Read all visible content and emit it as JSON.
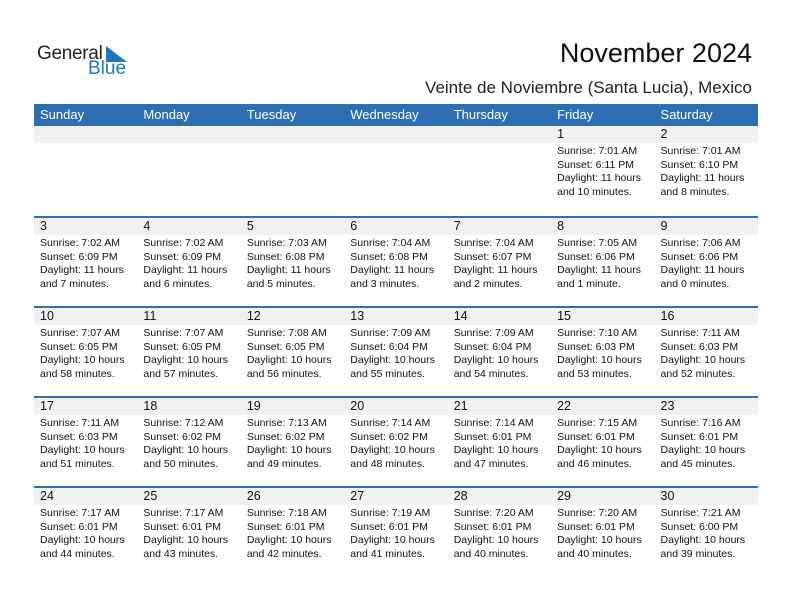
{
  "logo": {
    "word1": "General",
    "word2": "Blue",
    "color": "#1a78c2"
  },
  "header": {
    "title": "November 2024",
    "location": "Veinte de Noviembre (Santa Lucia), Mexico"
  },
  "colors": {
    "header_bg": "#2e6fb3",
    "date_band": "#f1f1f1"
  },
  "weekdays": [
    "Sunday",
    "Monday",
    "Tuesday",
    "Wednesday",
    "Thursday",
    "Friday",
    "Saturday"
  ],
  "weeks": [
    [
      null,
      null,
      null,
      null,
      null,
      {
        "day": "1",
        "sunrise": "Sunrise: 7:01 AM",
        "sunset": "Sunset: 6:11 PM",
        "daylight": "Daylight: 11 hours",
        "minutes": "and 10 minutes."
      },
      {
        "day": "2",
        "sunrise": "Sunrise: 7:01 AM",
        "sunset": "Sunset: 6:10 PM",
        "daylight": "Daylight: 11 hours",
        "minutes": "and 8 minutes."
      }
    ],
    [
      {
        "day": "3",
        "sunrise": "Sunrise: 7:02 AM",
        "sunset": "Sunset: 6:09 PM",
        "daylight": "Daylight: 11 hours",
        "minutes": "and 7 minutes."
      },
      {
        "day": "4",
        "sunrise": "Sunrise: 7:02 AM",
        "sunset": "Sunset: 6:09 PM",
        "daylight": "Daylight: 11 hours",
        "minutes": "and 6 minutes."
      },
      {
        "day": "5",
        "sunrise": "Sunrise: 7:03 AM",
        "sunset": "Sunset: 6:08 PM",
        "daylight": "Daylight: 11 hours",
        "minutes": "and 5 minutes."
      },
      {
        "day": "6",
        "sunrise": "Sunrise: 7:04 AM",
        "sunset": "Sunset: 6:08 PM",
        "daylight": "Daylight: 11 hours",
        "minutes": "and 3 minutes."
      },
      {
        "day": "7",
        "sunrise": "Sunrise: 7:04 AM",
        "sunset": "Sunset: 6:07 PM",
        "daylight": "Daylight: 11 hours",
        "minutes": "and 2 minutes."
      },
      {
        "day": "8",
        "sunrise": "Sunrise: 7:05 AM",
        "sunset": "Sunset: 6:06 PM",
        "daylight": "Daylight: 11 hours",
        "minutes": "and 1 minute."
      },
      {
        "day": "9",
        "sunrise": "Sunrise: 7:06 AM",
        "sunset": "Sunset: 6:06 PM",
        "daylight": "Daylight: 11 hours",
        "minutes": "and 0 minutes."
      }
    ],
    [
      {
        "day": "10",
        "sunrise": "Sunrise: 7:07 AM",
        "sunset": "Sunset: 6:05 PM",
        "daylight": "Daylight: 10 hours",
        "minutes": "and 58 minutes."
      },
      {
        "day": "11",
        "sunrise": "Sunrise: 7:07 AM",
        "sunset": "Sunset: 6:05 PM",
        "daylight": "Daylight: 10 hours",
        "minutes": "and 57 minutes."
      },
      {
        "day": "12",
        "sunrise": "Sunrise: 7:08 AM",
        "sunset": "Sunset: 6:05 PM",
        "daylight": "Daylight: 10 hours",
        "minutes": "and 56 minutes."
      },
      {
        "day": "13",
        "sunrise": "Sunrise: 7:09 AM",
        "sunset": "Sunset: 6:04 PM",
        "daylight": "Daylight: 10 hours",
        "minutes": "and 55 minutes."
      },
      {
        "day": "14",
        "sunrise": "Sunrise: 7:09 AM",
        "sunset": "Sunset: 6:04 PM",
        "daylight": "Daylight: 10 hours",
        "minutes": "and 54 minutes."
      },
      {
        "day": "15",
        "sunrise": "Sunrise: 7:10 AM",
        "sunset": "Sunset: 6:03 PM",
        "daylight": "Daylight: 10 hours",
        "minutes": "and 53 minutes."
      },
      {
        "day": "16",
        "sunrise": "Sunrise: 7:11 AM",
        "sunset": "Sunset: 6:03 PM",
        "daylight": "Daylight: 10 hours",
        "minutes": "and 52 minutes."
      }
    ],
    [
      {
        "day": "17",
        "sunrise": "Sunrise: 7:11 AM",
        "sunset": "Sunset: 6:03 PM",
        "daylight": "Daylight: 10 hours",
        "minutes": "and 51 minutes."
      },
      {
        "day": "18",
        "sunrise": "Sunrise: 7:12 AM",
        "sunset": "Sunset: 6:02 PM",
        "daylight": "Daylight: 10 hours",
        "minutes": "and 50 minutes."
      },
      {
        "day": "19",
        "sunrise": "Sunrise: 7:13 AM",
        "sunset": "Sunset: 6:02 PM",
        "daylight": "Daylight: 10 hours",
        "minutes": "and 49 minutes."
      },
      {
        "day": "20",
        "sunrise": "Sunrise: 7:14 AM",
        "sunset": "Sunset: 6:02 PM",
        "daylight": "Daylight: 10 hours",
        "minutes": "and 48 minutes."
      },
      {
        "day": "21",
        "sunrise": "Sunrise: 7:14 AM",
        "sunset": "Sunset: 6:01 PM",
        "daylight": "Daylight: 10 hours",
        "minutes": "and 47 minutes."
      },
      {
        "day": "22",
        "sunrise": "Sunrise: 7:15 AM",
        "sunset": "Sunset: 6:01 PM",
        "daylight": "Daylight: 10 hours",
        "minutes": "and 46 minutes."
      },
      {
        "day": "23",
        "sunrise": "Sunrise: 7:16 AM",
        "sunset": "Sunset: 6:01 PM",
        "daylight": "Daylight: 10 hours",
        "minutes": "and 45 minutes."
      }
    ],
    [
      {
        "day": "24",
        "sunrise": "Sunrise: 7:17 AM",
        "sunset": "Sunset: 6:01 PM",
        "daylight": "Daylight: 10 hours",
        "minutes": "and 44 minutes."
      },
      {
        "day": "25",
        "sunrise": "Sunrise: 7:17 AM",
        "sunset": "Sunset: 6:01 PM",
        "daylight": "Daylight: 10 hours",
        "minutes": "and 43 minutes."
      },
      {
        "day": "26",
        "sunrise": "Sunrise: 7:18 AM",
        "sunset": "Sunset: 6:01 PM",
        "daylight": "Daylight: 10 hours",
        "minutes": "and 42 minutes."
      },
      {
        "day": "27",
        "sunrise": "Sunrise: 7:19 AM",
        "sunset": "Sunset: 6:01 PM",
        "daylight": "Daylight: 10 hours",
        "minutes": "and 41 minutes."
      },
      {
        "day": "28",
        "sunrise": "Sunrise: 7:20 AM",
        "sunset": "Sunset: 6:01 PM",
        "daylight": "Daylight: 10 hours",
        "minutes": "and 40 minutes."
      },
      {
        "day": "29",
        "sunrise": "Sunrise: 7:20 AM",
        "sunset": "Sunset: 6:01 PM",
        "daylight": "Daylight: 10 hours",
        "minutes": "and 40 minutes."
      },
      {
        "day": "30",
        "sunrise": "Sunrise: 7:21 AM",
        "sunset": "Sunset: 6:00 PM",
        "daylight": "Daylight: 10 hours",
        "minutes": "and 39 minutes."
      }
    ]
  ]
}
